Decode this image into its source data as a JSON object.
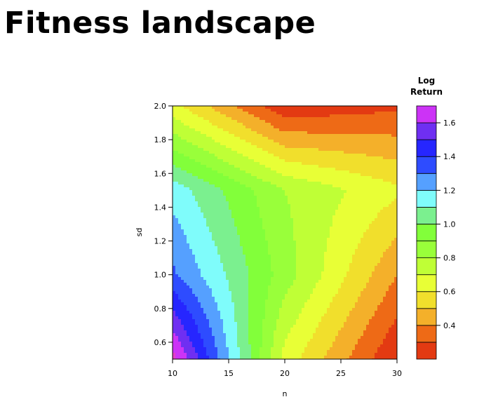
{
  "page": {
    "title": "Fitness landscape"
  },
  "chart_data": {
    "type": "heatmap",
    "subtype": "filled-contour",
    "title": "",
    "xlabel": "n",
    "ylabel": "sd",
    "xlim": [
      10,
      30
    ],
    "ylim": [
      0.5,
      2.0
    ],
    "x_ticks": [
      "10",
      "15",
      "20",
      "25",
      "30"
    ],
    "y_ticks": [
      "0.6",
      "0.8",
      "1.0",
      "1.2",
      "1.4",
      "1.6",
      "1.8",
      "2.0"
    ],
    "grid": false,
    "x": [
      10,
      20,
      30
    ],
    "y": [
      0.5,
      1.0,
      1.5,
      2.0
    ],
    "z": [
      [
        1.75,
        0.66,
        0.2
      ],
      [
        1.32,
        0.85,
        0.4
      ],
      [
        1.16,
        0.8,
        0.62
      ],
      [
        0.63,
        0.22,
        0.28
      ]
    ],
    "levels": [
      0.2,
      0.3,
      0.4,
      0.5,
      0.6,
      0.7,
      0.8,
      0.9,
      1.0,
      1.1,
      1.2,
      1.3,
      1.4,
      1.5,
      1.6,
      1.7
    ],
    "colors": [
      "#e33a12",
      "#ee6a16",
      "#f4b02a",
      "#f1df2c",
      "#e8ff36",
      "#bfff36",
      "#99ff3a",
      "#82ff3a",
      "#7bf08f",
      "#7ffcfb",
      "#55a0ff",
      "#2e4cff",
      "#2626ff",
      "#6f2ff2",
      "#cc33f6",
      "#e23fc6"
    ],
    "legend": {
      "title_line1": "Log",
      "title_line2": "Return",
      "placement": "right",
      "ticks": [
        "0.4",
        "0.6",
        "0.8",
        "1.0",
        "1.2",
        "1.4",
        "1.6"
      ]
    }
  }
}
